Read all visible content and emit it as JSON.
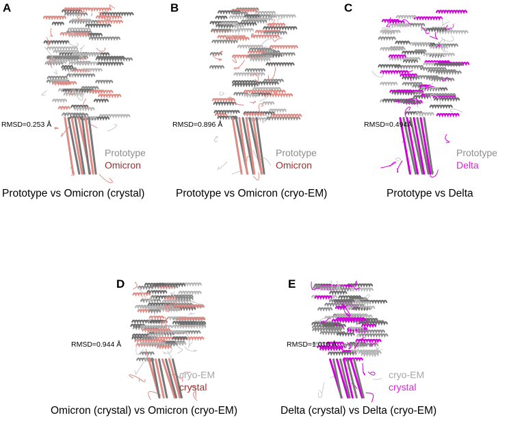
{
  "colors": {
    "prototype_gray": "#8c8c8c",
    "omicron_red": "#a52a2a",
    "omicron_ribbon": "#e08a84",
    "delta_magenta": "#e020e0",
    "cryo_em_gray": "#a6a6a6"
  },
  "panels": [
    {
      "label": "A",
      "caption": "Prototype vs Omicron (crystal)",
      "rmsd": "RMSD=0.253 Å",
      "legend": [
        "Prototype",
        "Omicron"
      ],
      "legend_colors": [
        "#8c8c8c",
        "#a52a2a"
      ],
      "ribbon_color": "#e08a84"
    },
    {
      "label": "B",
      "caption": "Prototype vs Omicron (cryo-EM)",
      "rmsd": "RMSD=0.896 Å",
      "legend": [
        "Prototype",
        "Omicron"
      ],
      "legend_colors": [
        "#8c8c8c",
        "#a52a2a"
      ],
      "ribbon_color": "#e08a84"
    },
    {
      "label": "C",
      "caption": "Prototype vs Delta",
      "rmsd": "RMSD=0.494Å",
      "legend": [
        "Prototype",
        "Delta"
      ],
      "legend_colors": [
        "#8c8c8c",
        "#e020e0"
      ],
      "ribbon_color": "#d000d8"
    },
    {
      "label": "D",
      "caption": "Omicron (crystal) vs Omicron (cryo-EM)",
      "rmsd": "RMSD=0.944 Å",
      "legend": [
        "cryo-EM",
        "crystal"
      ],
      "legend_colors": [
        "#a6a6a6",
        "#a52a2a"
      ],
      "ribbon_color": "#e08a84"
    },
    {
      "label": "E",
      "caption": "Delta (crystal) vs Delta (cryo-EM)",
      "rmsd": "RMSD=1.018 Å",
      "legend": [
        "cryo-EM",
        "crystal"
      ],
      "legend_colors": [
        "#a6a6a6",
        "#e020e0"
      ],
      "ribbon_color": "#d000d8"
    }
  ]
}
